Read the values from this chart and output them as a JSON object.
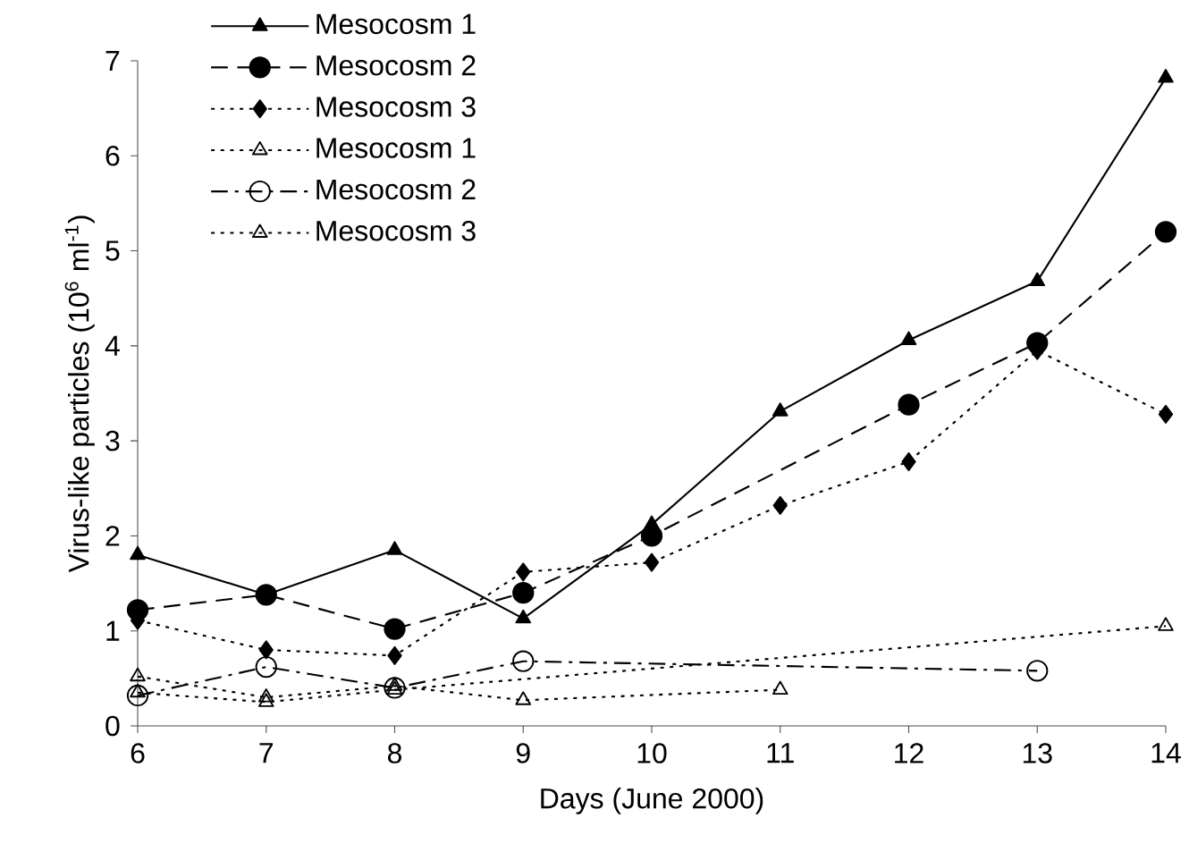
{
  "chart_data": {
    "type": "line",
    "xlabel": "Days (June 2000)",
    "ylabel": "Virus-like particles (10$^{6}$ ml$^{-1}$)",
    "x": [
      6,
      7,
      8,
      9,
      10,
      11,
      12,
      13,
      14
    ],
    "xlim": [
      6,
      14
    ],
    "xticks": [
      6,
      7,
      8,
      9,
      10,
      11,
      12,
      13,
      14
    ],
    "ylim": [
      0,
      7
    ],
    "yticks": [
      0,
      1,
      2,
      3,
      4,
      5,
      6,
      7
    ],
    "grid": false,
    "legend": "top",
    "series": [
      {
        "name": "Mesocosm 1",
        "color": "#000000",
        "marker": "triangle",
        "line_style": "solid",
        "values": [
          1.8,
          1.38,
          1.85,
          1.13,
          2.12,
          3.31,
          4.06,
          4.68,
          6.82
        ]
      },
      {
        "name": "Mesocosm 2",
        "color": "#000000",
        "marker": "circle",
        "line_style": "dashed",
        "values": [
          1.22,
          1.38,
          1.02,
          1.4,
          2.0,
          null,
          3.38,
          4.03,
          5.2
        ]
      },
      {
        "name": "Mesocosm 3",
        "color": "#000000",
        "marker": "diamond",
        "line_style": "dotted",
        "values": [
          1.11,
          0.8,
          0.74,
          1.62,
          1.72,
          2.32,
          2.78,
          3.95,
          3.28
        ]
      },
      {
        "name": "Mesocosm 1",
        "color": "#000000",
        "marker": "triangle",
        "line_style": "dotted",
        "values": [
          0.52,
          0.3,
          0.42,
          0.27,
          null,
          0.38,
          null,
          null,
          null
        ]
      },
      {
        "name": "Mesocosm 2",
        "color": "#000000",
        "marker": "circle",
        "line_style": "dashdot",
        "values": [
          0.32,
          0.62,
          0.4,
          0.68,
          null,
          null,
          null,
          0.58,
          null
        ]
      },
      {
        "name": "Mesocosm 3",
        "color": "#000000",
        "marker": "triangle",
        "line_style": "dotted",
        "values": [
          0.35,
          0.25,
          0.38,
          null,
          null,
          null,
          null,
          null,
          1.05
        ]
      }
    ]
  }
}
